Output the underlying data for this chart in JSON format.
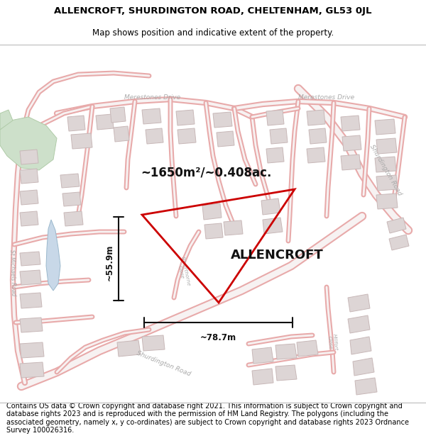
{
  "title_line1": "ALLENCROFT, SHURDINGTON ROAD, CHELTENHAM, GL53 0JL",
  "title_line2": "Map shows position and indicative extent of the property.",
  "area_label": "~1650m²/~0.408ac.",
  "width_label": "~78.7m",
  "height_label": "~55.9m",
  "property_name": "ALLENCROFT",
  "footer_text": "Contains OS data © Crown copyright and database right 2021. This information is subject to Crown copyright and database rights 2023 and is reproduced with the permission of HM Land Registry. The polygons (including the associated geometry, namely x, y co-ordinates) are subject to Crown copyright and database rights 2023 Ordnance Survey 100026316.",
  "map_bg": "#f7f2f2",
  "road_color": "#e8aaaa",
  "road_inner": "#f7f2f2",
  "building_fill": "#ddd5d5",
  "building_edge": "#c8b8b8",
  "green_fill": "#cde0ca",
  "blue_fill": "#c8d8e8",
  "plot_color": "#cc0000",
  "dim_line_color": "#111111",
  "title_fontsize": 9.5,
  "subtitle_fontsize": 8.5,
  "footer_fontsize": 7.0,
  "map_label_color": "#aaaaaa",
  "map_label_size": 6.5
}
